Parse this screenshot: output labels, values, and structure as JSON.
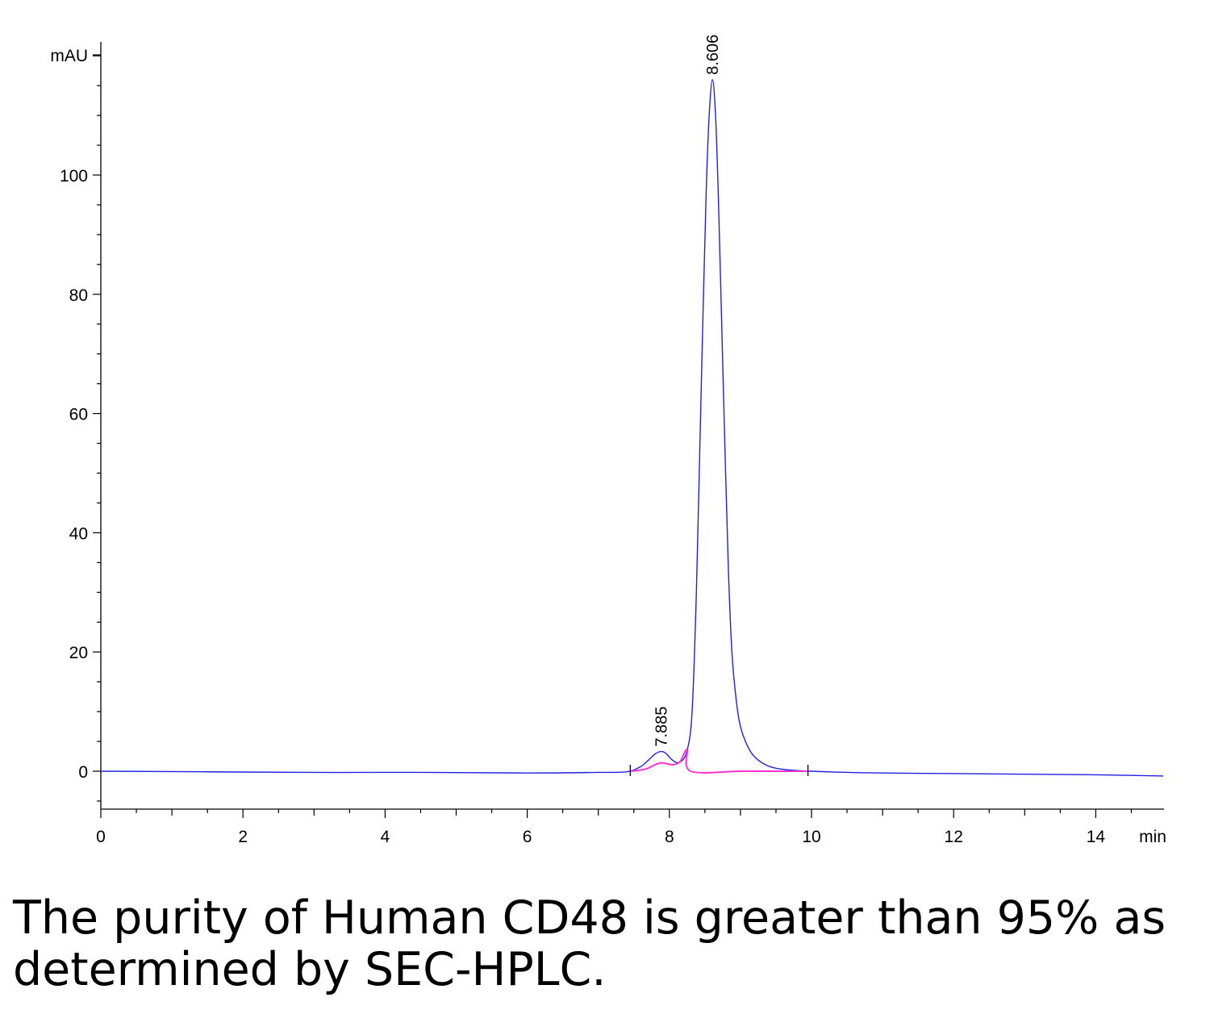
{
  "chart_data": {
    "type": "line",
    "y_unit_label": "mAU",
    "x_unit_label": "min",
    "xlim": [
      0,
      14.95
    ],
    "ylim": [
      -6,
      122
    ],
    "x_ticks": [
      0,
      2,
      4,
      6,
      8,
      10,
      12,
      14
    ],
    "y_ticks": [
      0,
      20,
      40,
      60,
      80,
      100
    ],
    "x_tick_labels": [
      "0",
      "2",
      "4",
      "6",
      "8",
      "10",
      "12",
      "14"
    ],
    "y_tick_labels": [
      "0",
      "20",
      "40",
      "60",
      "80",
      "100"
    ],
    "grid": false,
    "series": [
      {
        "color": "#2020e0",
        "x": [
          0,
          1.5,
          3,
          4.5,
          6,
          7.0,
          7.4,
          7.6,
          7.7,
          7.8,
          7.885,
          7.95,
          8.05,
          8.15,
          8.25,
          8.32,
          8.38,
          8.43,
          8.48,
          8.52,
          8.56,
          8.606,
          8.65,
          8.69,
          8.73,
          8.78,
          8.83,
          8.88,
          8.94,
          9.0,
          9.1,
          9.2,
          9.35,
          9.5,
          9.7,
          10.0,
          10.5,
          11,
          12,
          13,
          14,
          14.95
        ],
        "y": [
          0,
          -0.1,
          -0.2,
          -0.2,
          -0.3,
          -0.2,
          -0.1,
          0.8,
          1.8,
          2.9,
          3.3,
          3.0,
          1.8,
          1.5,
          3.5,
          10,
          30,
          55,
          80,
          98,
          110,
          116,
          110,
          96,
          78,
          55,
          34,
          20,
          12,
          7.5,
          4.2,
          2.4,
          1.1,
          0.5,
          0.2,
          0,
          -0.2,
          -0.3,
          -0.4,
          -0.5,
          -0.6,
          -0.8
        ]
      },
      {
        "color": "#ff33cc",
        "x": [
          7.45,
          7.6,
          7.7,
          7.8,
          7.885,
          7.95,
          8.05,
          8.15,
          8.25,
          8.3,
          9.0,
          9.5,
          9.95
        ],
        "y": [
          0,
          0.2,
          0.5,
          1.1,
          1.4,
          1.3,
          1.1,
          1.6,
          3.6,
          0,
          0,
          0,
          0
        ]
      }
    ],
    "peaks": [
      {
        "time": 7.885,
        "label": "7.885",
        "height": 3.3
      },
      {
        "time": 8.606,
        "label": "8.606",
        "height": 116
      }
    ],
    "markers": [
      7.45,
      9.95
    ]
  },
  "caption": "The purity of Human CD48 is greater than 95% as determined by SEC-HPLC."
}
